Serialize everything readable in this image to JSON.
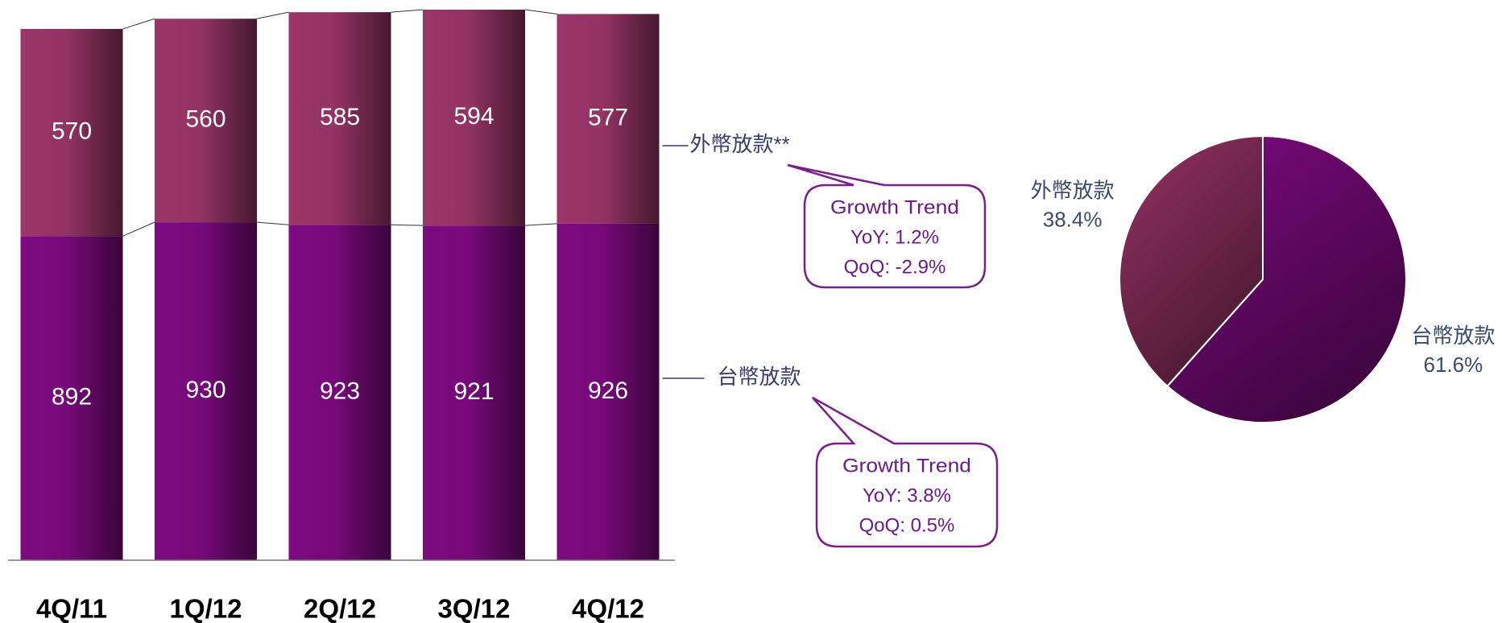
{
  "chart_data": [
    {
      "type": "stacked_bar",
      "categories": [
        "4Q/11",
        "1Q/12",
        "2Q/12",
        "3Q/12",
        "4Q/12"
      ],
      "series": [
        {
          "name": "台幣放款",
          "color": "#7d0a80",
          "values": [
            892,
            930,
            923,
            921,
            926
          ]
        },
        {
          "name": "外幣放款**",
          "color": "#9a3668",
          "values": [
            570,
            560,
            585,
            594,
            577
          ]
        }
      ],
      "ylim": [
        0,
        1515
      ],
      "annotations": [
        {
          "lines": [
            "Growth Trend",
            "YoY: 1.2%",
            "QoQ: -2.9%"
          ]
        },
        {
          "lines": [
            "Growth Trend",
            "YoY: 3.8%",
            "QoQ: 0.5%"
          ]
        }
      ]
    },
    {
      "type": "pie",
      "categories": [
        "台幣放款",
        "外幣放款"
      ],
      "values": [
        61.6,
        38.4
      ],
      "value_labels": [
        "61.6%",
        "38.4%"
      ],
      "colors": [
        "#7d0a80",
        "#953263"
      ]
    }
  ]
}
